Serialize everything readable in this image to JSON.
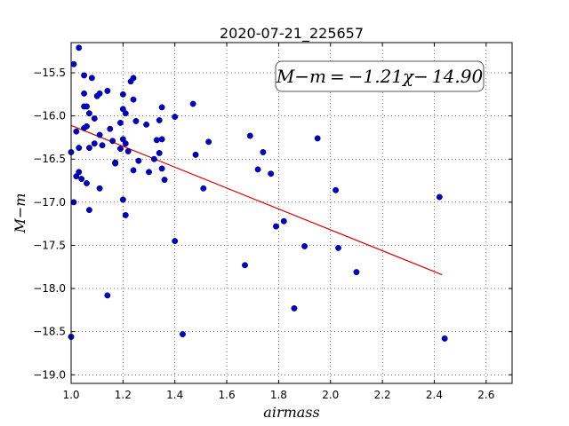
{
  "chart_data": {
    "type": "scatter",
    "title": "2020-07-21_225657",
    "xlabel": "airmass",
    "ylabel": "M−m",
    "xlim": [
      1.0,
      2.7
    ],
    "ylim": [
      -19.1,
      -15.15
    ],
    "y_inverted": true,
    "grid": true,
    "xticks": [
      1.0,
      1.2,
      1.4,
      1.6,
      1.8,
      2.0,
      2.2,
      2.4,
      2.6
    ],
    "xtick_labels": [
      "1.0",
      "1.2",
      "1.4",
      "1.6",
      "1.8",
      "2.0",
      "2.2",
      "2.4",
      "2.6"
    ],
    "yticks": [
      -15.5,
      -16.0,
      -16.5,
      -17.0,
      -17.5,
      -18.0,
      -18.5,
      -19.0
    ],
    "ytick_labels": [
      "−15.5",
      "−16.0",
      "−16.5",
      "−17.0",
      "−17.5",
      "−18.0",
      "−18.5",
      "−19.0"
    ],
    "annotation": "M−m = −1.21χ− 14.90",
    "marker_color": "#0000cc",
    "fit_color": "#dd0000",
    "fit_line": {
      "slope": -1.21,
      "intercept": -14.9,
      "x_start": 1.0,
      "x_end": 2.43
    },
    "points": [
      {
        "x": 1.03,
        "y": -15.21
      },
      {
        "x": 1.01,
        "y": -15.4
      },
      {
        "x": 1.05,
        "y": -15.53
      },
      {
        "x": 1.08,
        "y": -15.56
      },
      {
        "x": 1.23,
        "y": -15.6
      },
      {
        "x": 1.24,
        "y": -15.56
      },
      {
        "x": 1.05,
        "y": -15.74
      },
      {
        "x": 1.1,
        "y": -15.77
      },
      {
        "x": 1.11,
        "y": -15.74
      },
      {
        "x": 1.14,
        "y": -15.71
      },
      {
        "x": 1.2,
        "y": -15.75
      },
      {
        "x": 1.24,
        "y": -15.81
      },
      {
        "x": 1.05,
        "y": -15.89
      },
      {
        "x": 1.06,
        "y": -15.89
      },
      {
        "x": 1.07,
        "y": -15.97
      },
      {
        "x": 1.2,
        "y": -15.92
      },
      {
        "x": 1.21,
        "y": -15.97
      },
      {
        "x": 1.35,
        "y": -15.9
      },
      {
        "x": 1.47,
        "y": -15.86
      },
      {
        "x": 1.09,
        "y": -16.03
      },
      {
        "x": 1.19,
        "y": -16.08
      },
      {
        "x": 1.25,
        "y": -16.06
      },
      {
        "x": 1.29,
        "y": -16.1
      },
      {
        "x": 1.34,
        "y": -16.05
      },
      {
        "x": 1.4,
        "y": -16.01
      },
      {
        "x": 1.02,
        "y": -16.18
      },
      {
        "x": 1.05,
        "y": -16.14
      },
      {
        "x": 1.06,
        "y": -16.12
      },
      {
        "x": 1.11,
        "y": -16.22
      },
      {
        "x": 1.15,
        "y": -16.15
      },
      {
        "x": 1.09,
        "y": -16.32
      },
      {
        "x": 1.12,
        "y": -16.34
      },
      {
        "x": 1.16,
        "y": -16.29
      },
      {
        "x": 1.2,
        "y": -16.27
      },
      {
        "x": 1.21,
        "y": -16.32
      },
      {
        "x": 1.33,
        "y": -16.28
      },
      {
        "x": 1.35,
        "y": -16.27
      },
      {
        "x": 1.53,
        "y": -16.3
      },
      {
        "x": 1.69,
        "y": -16.23
      },
      {
        "x": 1.95,
        "y": -16.26
      },
      {
        "x": 1.0,
        "y": -16.42
      },
      {
        "x": 1.03,
        "y": -16.37
      },
      {
        "x": 1.07,
        "y": -16.37
      },
      {
        "x": 1.19,
        "y": -16.38
      },
      {
        "x": 1.22,
        "y": -16.41
      },
      {
        "x": 1.34,
        "y": -16.43
      },
      {
        "x": 1.48,
        "y": -16.45
      },
      {
        "x": 1.74,
        "y": -16.42
      },
      {
        "x": 1.17,
        "y": -16.54
      },
      {
        "x": 1.17,
        "y": -16.55
      },
      {
        "x": 1.26,
        "y": -16.52
      },
      {
        "x": 1.32,
        "y": -16.5
      },
      {
        "x": 1.03,
        "y": -16.65
      },
      {
        "x": 1.24,
        "y": -16.63
      },
      {
        "x": 1.3,
        "y": -16.65
      },
      {
        "x": 1.35,
        "y": -16.61
      },
      {
        "x": 1.72,
        "y": -16.62
      },
      {
        "x": 1.77,
        "y": -16.67
      },
      {
        "x": 1.02,
        "y": -16.7
      },
      {
        "x": 1.04,
        "y": -16.73
      },
      {
        "x": 1.06,
        "y": -16.78
      },
      {
        "x": 1.36,
        "y": -16.74
      },
      {
        "x": 1.11,
        "y": -16.84
      },
      {
        "x": 1.51,
        "y": -16.84
      },
      {
        "x": 2.02,
        "y": -16.86
      },
      {
        "x": 1.01,
        "y": -17.0
      },
      {
        "x": 1.2,
        "y": -16.97
      },
      {
        "x": 2.42,
        "y": -16.94
      },
      {
        "x": 1.07,
        "y": -17.09
      },
      {
        "x": 1.21,
        "y": -17.15
      },
      {
        "x": 1.82,
        "y": -17.22
      },
      {
        "x": 1.79,
        "y": -17.28
      },
      {
        "x": 1.4,
        "y": -17.45
      },
      {
        "x": 1.9,
        "y": -17.51
      },
      {
        "x": 2.03,
        "y": -17.53
      },
      {
        "x": 1.67,
        "y": -17.73
      },
      {
        "x": 2.1,
        "y": -17.81
      },
      {
        "x": 1.14,
        "y": -18.08
      },
      {
        "x": 1.86,
        "y": -18.23
      },
      {
        "x": 1.0,
        "y": -18.56
      },
      {
        "x": 1.43,
        "y": -18.53
      },
      {
        "x": 2.44,
        "y": -18.58
      }
    ]
  }
}
